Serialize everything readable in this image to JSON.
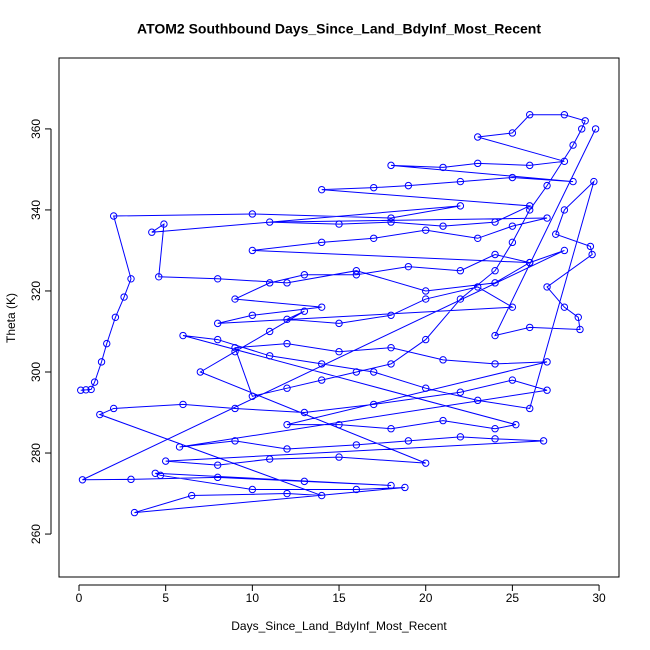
{
  "chart_data": {
    "type": "line",
    "markers": "circle",
    "color": "#0000ff",
    "title": "ATOM2 Southbound Days_Since_Land_BdyInf_Most_Recent",
    "x_label": "Days_Since_Land_BdyInf_Most_Recent",
    "y_label": "Theta (K)",
    "xlim": [
      -1.154,
      31.15
    ],
    "ylim": [
      249.4,
      377.5
    ],
    "xticks": [
      0,
      5,
      10,
      15,
      20,
      25,
      30
    ],
    "yticks": [
      260,
      280,
      300,
      320,
      340,
      360
    ],
    "grid": false,
    "x": [
      0.1,
      0.4,
      0.7,
      0.9,
      1.3,
      1.6,
      2.1,
      2.6,
      3.0,
      2.0,
      10,
      18,
      22,
      4.2,
      4.9,
      4.6,
      8,
      12,
      16,
      20,
      24,
      26,
      28,
      0.2,
      3,
      8,
      13,
      18,
      4.4,
      4.7,
      10,
      16,
      18.8,
      3.2,
      6.5,
      12,
      14,
      1.2,
      2,
      6,
      9,
      13,
      17,
      22,
      25,
      27,
      5.8,
      9,
      12,
      16,
      19,
      22,
      24,
      26.8,
      5,
      8,
      11,
      15,
      20,
      7,
      9,
      11,
      13,
      12,
      15,
      18,
      20,
      23,
      25,
      8,
      10,
      14,
      9,
      11,
      13,
      16,
      19,
      22,
      24,
      26,
      10,
      14,
      17,
      20,
      23,
      25,
      27,
      11,
      15,
      18,
      21,
      24,
      26,
      14,
      17,
      19,
      22,
      25,
      28.5,
      18,
      21,
      23,
      26,
      28,
      23,
      25,
      26,
      28,
      29.2,
      29,
      28.5,
      27,
      26,
      25,
      24,
      22,
      20,
      18,
      16,
      14,
      12,
      10,
      9,
      12,
      15,
      18,
      21,
      24,
      27,
      12,
      15,
      18,
      21,
      24,
      25.2,
      6,
      8,
      11,
      14,
      17,
      20,
      23,
      26,
      29.7,
      28,
      27.5,
      29.5,
      29.6,
      27,
      28,
      28.8,
      28.9,
      26,
      24,
      29.8
    ],
    "values": [
      295.5,
      295.6,
      295.7,
      297.5,
      302.5,
      307,
      313.5,
      318.5,
      323,
      338.5,
      339,
      338,
      341,
      334.5,
      336.5,
      323.5,
      323,
      322,
      325,
      320,
      322,
      327,
      330,
      273.4,
      273.5,
      274,
      273,
      272,
      275,
      274.5,
      271,
      271,
      271.5,
      265.3,
      269.5,
      270,
      269.5,
      289.5,
      291,
      292,
      291,
      290,
      292,
      295,
      298,
      295.5,
      281.5,
      283,
      281,
      282,
      283,
      284,
      283.5,
      283,
      278,
      277,
      278.5,
      279,
      277.5,
      300,
      305,
      310,
      315,
      313,
      312,
      314,
      318,
      321,
      316,
      312,
      314,
      316,
      318,
      322,
      324,
      324,
      326,
      325,
      329,
      327,
      330,
      332,
      333,
      335,
      333,
      336,
      338,
      337,
      336.5,
      337,
      336,
      337,
      341,
      345,
      345.5,
      346,
      347,
      348,
      347,
      351,
      350.5,
      351.5,
      351,
      352,
      358,
      359,
      363.5,
      363.5,
      362,
      360,
      356,
      346,
      340,
      332,
      325,
      318,
      308,
      302,
      300,
      298,
      296,
      294,
      306,
      307,
      305,
      306,
      303,
      302,
      302.5,
      287,
      287,
      286,
      288,
      286,
      287,
      309,
      308,
      304,
      302,
      300,
      296,
      293,
      291,
      347,
      340,
      334,
      331,
      329,
      321,
      316,
      313.5,
      310.5,
      311,
      309,
      360
    ]
  }
}
